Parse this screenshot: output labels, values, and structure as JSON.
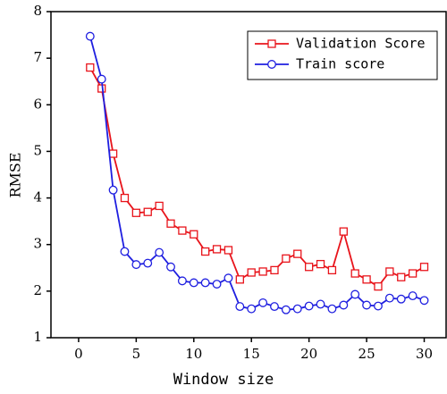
{
  "chart_data": {
    "type": "line",
    "xlabel": "Window size",
    "ylabel": "RMSE",
    "x": [
      1,
      2,
      3,
      4,
      5,
      6,
      7,
      8,
      9,
      10,
      11,
      12,
      13,
      14,
      15,
      16,
      17,
      18,
      19,
      20,
      21,
      22,
      23,
      24,
      25,
      26,
      27,
      28,
      29,
      30
    ],
    "series": [
      {
        "name": "Validation Score",
        "color": "#e8141b",
        "marker": "square",
        "values": [
          6.8,
          6.35,
          4.95,
          4.0,
          3.68,
          3.7,
          3.83,
          3.45,
          3.3,
          3.22,
          2.85,
          2.9,
          2.88,
          2.25,
          2.4,
          2.42,
          2.45,
          2.7,
          2.8,
          2.52,
          2.58,
          2.45,
          3.28,
          2.38,
          2.25,
          2.1,
          2.42,
          2.3,
          2.38,
          2.52
        ]
      },
      {
        "name": "Train score",
        "color": "#1f1fe0",
        "marker": "circle",
        "values": [
          7.47,
          6.55,
          4.17,
          2.85,
          2.57,
          2.6,
          2.83,
          2.52,
          2.22,
          2.18,
          2.18,
          2.15,
          2.28,
          1.67,
          1.62,
          1.75,
          1.67,
          1.6,
          1.62,
          1.68,
          1.72,
          1.62,
          1.7,
          1.93,
          1.7,
          1.68,
          1.85,
          1.83,
          1.9,
          1.8
        ]
      }
    ],
    "xlim": [
      -2.4,
      31.9
    ],
    "ylim": [
      1,
      8
    ],
    "xticks": [
      0,
      5,
      10,
      15,
      20,
      25,
      30
    ],
    "yticks": [
      1,
      2,
      3,
      4,
      5,
      6,
      7,
      8
    ],
    "legend": "upper right"
  }
}
